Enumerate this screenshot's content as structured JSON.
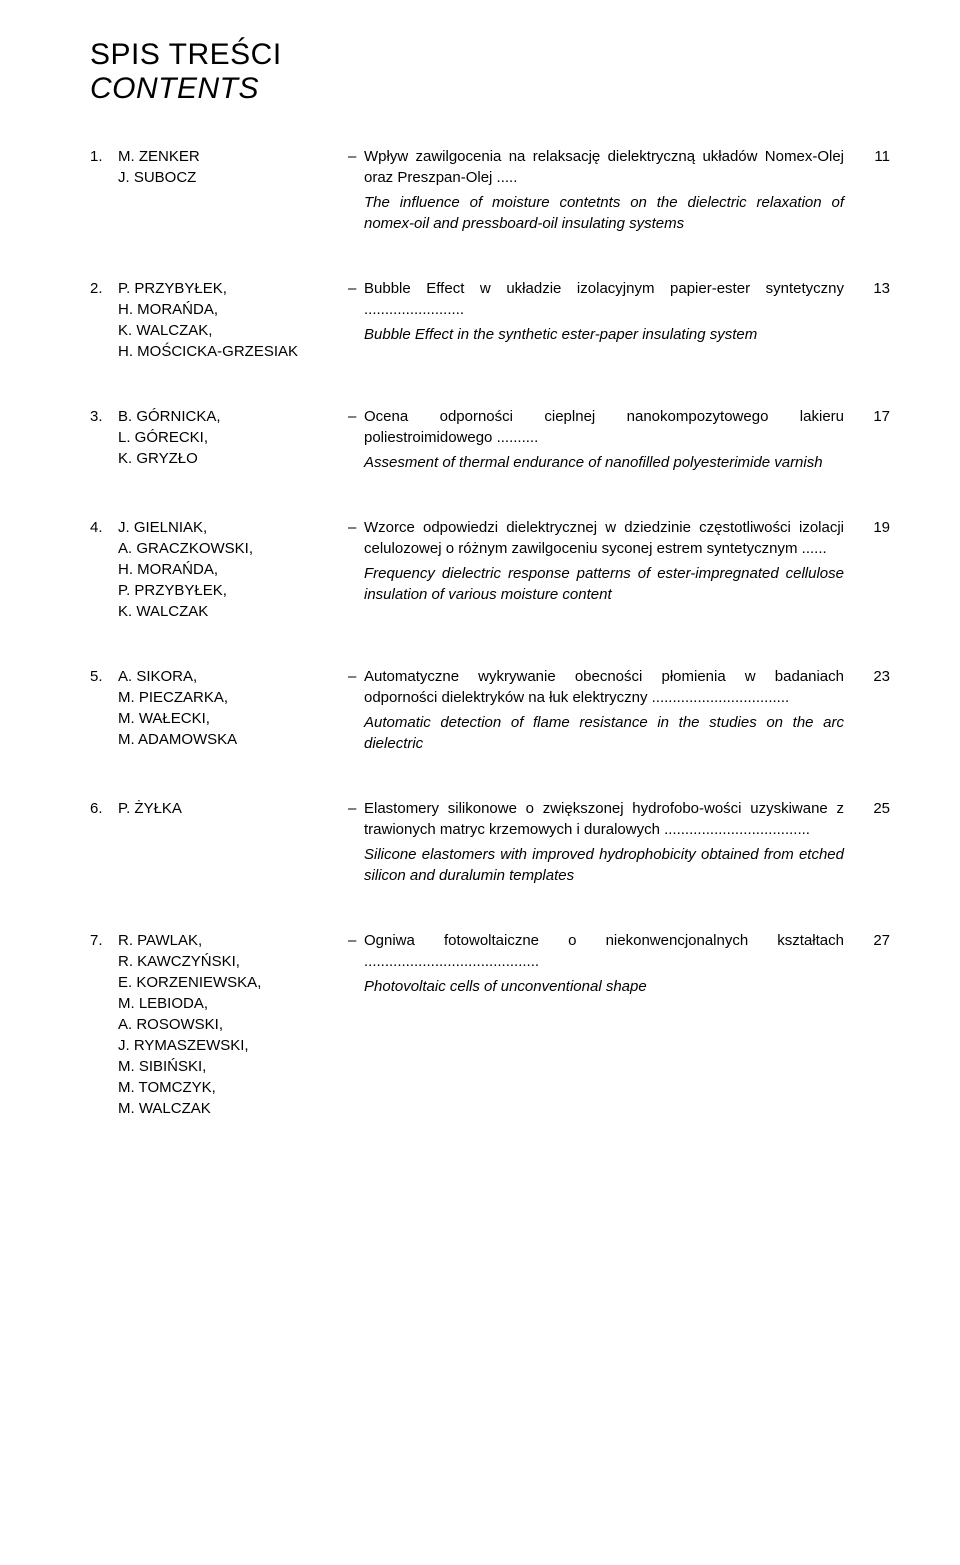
{
  "titles": {
    "main": "SPIS TREŚCI",
    "sub": "CONTENTS"
  },
  "dash": "–",
  "entries": [
    {
      "num": "1.",
      "authors": [
        "M. ZENKER",
        "J. SUBOCZ"
      ],
      "title_pl": "Wpływ zawilgocenia na relaksację dielektryczną układów Nomex-Olej oraz Preszpan-Olej .....",
      "title_en": "The influence of moisture contetnts on the dielectric relaxation of nomex-oil and pressboard-oil insulating systems",
      "page": "11"
    },
    {
      "num": "2.",
      "authors": [
        "P. PRZYBYŁEK,",
        "H. MORAŃDA,",
        "K. WALCZAK,",
        "H. MOŚCICKA-GRZESIAK"
      ],
      "title_pl": "Bubble Effect w układzie izolacyjnym papier-ester syntetyczny ........................",
      "title_en": "Bubble Effect in the synthetic ester-paper insulating system",
      "page": "13"
    },
    {
      "num": "3.",
      "authors": [
        "B. GÓRNICKA,",
        "L. GÓRECKI,",
        "K. GRYZŁO"
      ],
      "title_pl": "Ocena odporności cieplnej nanokompozytowego lakieru poliestroimidowego ..........",
      "title_en": "Assesment of thermal endurance of nanofilled polyesterimide varnish",
      "page": "17"
    },
    {
      "num": "4.",
      "authors": [
        "J. GIELNIAK,",
        "A. GRACZKOWSKI,",
        "H. MORAŃDA,",
        "P. PRZYBYŁEK,",
        "K. WALCZAK"
      ],
      "title_pl": "Wzorce odpowiedzi dielektrycznej w dziedzinie częstotliwości izolacji celulozowej o różnym zawilgoceniu syconej estrem syntetycznym ......",
      "title_en": "Frequency dielectric response patterns of ester-impregnated cellulose insulation of various moisture content",
      "page": "19"
    },
    {
      "num": "5.",
      "authors": [
        "A. SIKORA,",
        "M. PIECZARKA,",
        "M. WAŁECKI,",
        "M. ADAMOWSKA"
      ],
      "title_pl": "Automatyczne wykrywanie obecności płomienia w badaniach odporności dielektryków na łuk elektryczny .................................",
      "title_en": "Automatic detection of flame resistance in the studies on the arc dielectric",
      "page": "23"
    },
    {
      "num": "6.",
      "authors": [
        "P. ŻYŁKA"
      ],
      "title_pl": "Elastomery silikonowe o zwiększonej hydrofobo-wości uzyskiwane z trawionych matryc krzemowych i duralowych ...................................",
      "title_en": "Silicone elastomers with improved hydrophobicity obtained from etched silicon and duralumin templates",
      "page": "25"
    },
    {
      "num": "7.",
      "authors": [
        "R. PAWLAK,",
        "R. KAWCZYŃSKI,",
        "E. KORZENIEWSKA,",
        "M. LEBIODA,",
        "A. ROSOWSKI,",
        "J. RYMASZEWSKI,",
        "M. SIBIŃSKI,",
        "M. TOMCZYK,",
        "M. WALCZAK"
      ],
      "title_pl": "Ogniwa fotowoltaiczne o niekonwencjonalnych kształtach ..........................................",
      "title_en": "Photovoltaic cells of unconventional shape",
      "page": "27"
    }
  ]
}
